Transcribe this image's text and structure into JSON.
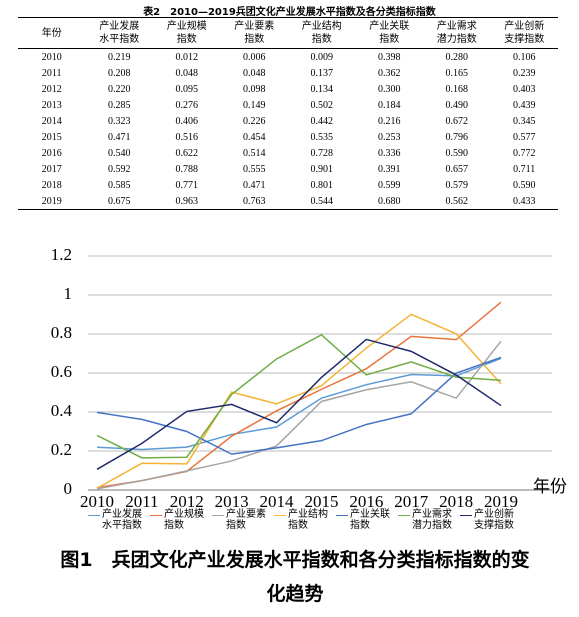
{
  "table": {
    "title": "表2　2010—2019兵团文化产业发展水平指数及各分类指标指数",
    "header": [
      "年份",
      "产业发展水平指数",
      "产业规模指数",
      "产业要素指数",
      "产业结构指数",
      "产业关联指数",
      "产业需求潜力指数",
      "产业创新支撑指数"
    ],
    "rows": [
      [
        "2010",
        "0.219",
        "0.012",
        "0.006",
        "0.009",
        "0.398",
        "0.280",
        "0.106"
      ],
      [
        "2011",
        "0.208",
        "0.048",
        "0.048",
        "0.137",
        "0.362",
        "0.165",
        "0.239"
      ],
      [
        "2012",
        "0.220",
        "0.095",
        "0.098",
        "0.134",
        "0.300",
        "0.168",
        "0.403"
      ],
      [
        "2013",
        "0.285",
        "0.276",
        "0.149",
        "0.502",
        "0.184",
        "0.490",
        "0.439"
      ],
      [
        "2014",
        "0.323",
        "0.406",
        "0.226",
        "0.442",
        "0.216",
        "0.672",
        "0.345"
      ],
      [
        "2015",
        "0.471",
        "0.516",
        "0.454",
        "0.535",
        "0.253",
        "0.796",
        "0.577"
      ],
      [
        "2016",
        "0.540",
        "0.622",
        "0.514",
        "0.728",
        "0.336",
        "0.590",
        "0.772"
      ],
      [
        "2017",
        "0.592",
        "0.788",
        "0.555",
        "0.901",
        "0.391",
        "0.657",
        "0.711"
      ],
      [
        "2018",
        "0.585",
        "0.771",
        "0.471",
        "0.801",
        "0.599",
        "0.579",
        "0.590"
      ],
      [
        "2019",
        "0.675",
        "0.963",
        "0.763",
        "0.544",
        "0.680",
        "0.562",
        "0.433"
      ]
    ]
  },
  "chart_data": {
    "type": "line",
    "x_label": "年份",
    "categories": [
      "2010",
      "2011",
      "2012",
      "2013",
      "2014",
      "2015",
      "2016",
      "2017",
      "2018",
      "2019"
    ],
    "ylim": [
      0,
      1.2
    ],
    "yticks": [
      0,
      0.2,
      0.4,
      0.6,
      0.8,
      1,
      1.2
    ],
    "grid": true,
    "series": [
      {
        "name": "产业发展水平指数",
        "color": "#5b9bd5",
        "values": [
          0.219,
          0.208,
          0.22,
          0.285,
          0.323,
          0.471,
          0.54,
          0.592,
          0.585,
          0.675
        ]
      },
      {
        "name": "产业规模指数",
        "color": "#e8743b",
        "values": [
          0.012,
          0.048,
          0.095,
          0.276,
          0.406,
          0.516,
          0.622,
          0.788,
          0.771,
          0.963
        ]
      },
      {
        "name": "产业要素指数",
        "color": "#a5a5a5",
        "values": [
          0.006,
          0.048,
          0.098,
          0.149,
          0.226,
          0.454,
          0.514,
          0.555,
          0.471,
          0.763
        ]
      },
      {
        "name": "产业结构指数",
        "color": "#f5b335",
        "values": [
          0.009,
          0.137,
          0.134,
          0.502,
          0.442,
          0.535,
          0.728,
          0.901,
          0.801,
          0.544
        ]
      },
      {
        "name": "产业关联指数",
        "color": "#4472c4",
        "values": [
          0.398,
          0.362,
          0.3,
          0.184,
          0.216,
          0.253,
          0.336,
          0.391,
          0.599,
          0.68
        ]
      },
      {
        "name": "产业需求潜力指数",
        "color": "#70ad47",
        "values": [
          0.28,
          0.165,
          0.168,
          0.49,
          0.672,
          0.796,
          0.59,
          0.657,
          0.579,
          0.562
        ]
      },
      {
        "name": "产业创新支撑指数",
        "color": "#1f2a6b",
        "values": [
          0.106,
          0.239,
          0.403,
          0.439,
          0.345,
          0.577,
          0.772,
          0.711,
          0.59,
          0.433
        ]
      }
    ]
  },
  "figure_caption": "图1　兵团文化产业发展水平指数和各分类指标指数的变化趋势"
}
